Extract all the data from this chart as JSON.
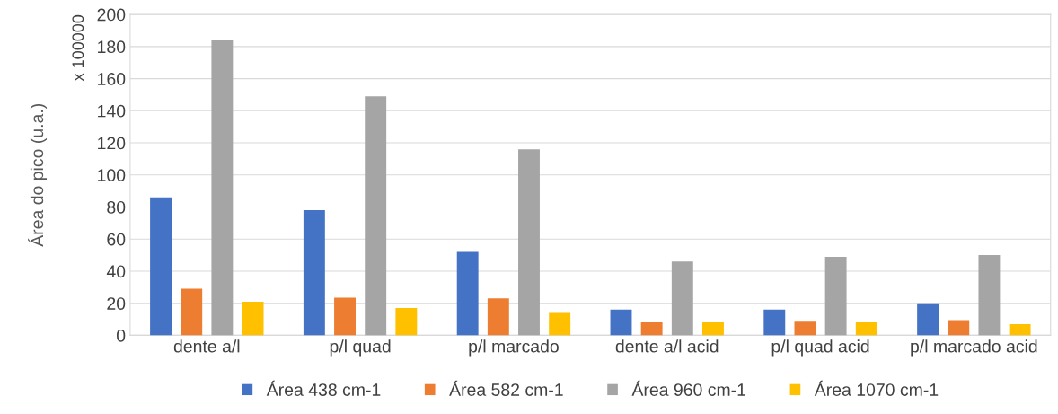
{
  "chart_data": {
    "type": "bar",
    "ylabel": "Área do pico (u.a.)",
    "annotations": [
      "x 100000"
    ],
    "categories": [
      "dente a/l",
      "p/l quad",
      "p/l marcado",
      "dente a/l acid",
      "p/l quad acid",
      "p/l marcado acid"
    ],
    "series": [
      {
        "name": "Área 438 cm-1",
        "color": "#4472c4",
        "values": [
          86,
          78,
          52,
          16,
          16,
          20
        ]
      },
      {
        "name": "Área 582 cm-1",
        "color": "#ed7d31",
        "values": [
          29,
          23.5,
          23,
          8.5,
          9,
          9.5
        ]
      },
      {
        "name": "Área 960 cm-1",
        "color": "#a5a5a5",
        "values": [
          184,
          149,
          116,
          46,
          49,
          50
        ]
      },
      {
        "name": "Área 1070 cm-1",
        "color": "#ffc000",
        "values": [
          21,
          17,
          14.5,
          8.5,
          8.5,
          7
        ]
      }
    ],
    "ylim": [
      0,
      200
    ],
    "yticks": [
      0,
      20,
      40,
      60,
      80,
      100,
      120,
      140,
      160,
      180,
      200
    ],
    "grid": "y",
    "legend": "bottom"
  }
}
